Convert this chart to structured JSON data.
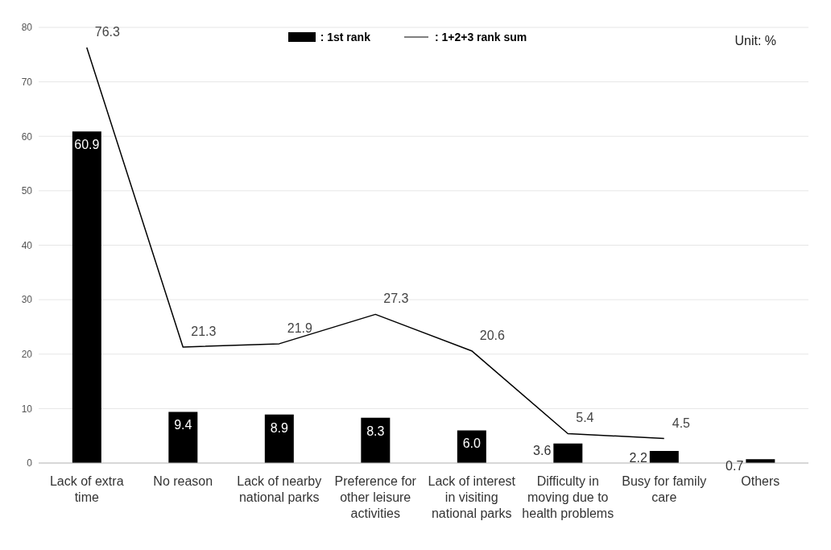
{
  "chart_data": {
    "type": "bar",
    "categories": [
      "Lack of extra time",
      "No reason",
      "Lack of nearby national parks",
      "Preference for other leisure activities",
      "Lack of interest in visiting national parks",
      "Difficulty in moving due to health problems",
      "Busy for family care",
      "Others"
    ],
    "series": [
      {
        "name": ": 1st rank",
        "color": "#000000",
        "values": [
          60.9,
          9.4,
          8.9,
          8.3,
          6.0,
          3.6,
          2.2,
          0.7
        ],
        "value_labels": [
          "60.9",
          "9.4",
          "8.9",
          "8.3",
          "6.0",
          "3.6",
          "2.2",
          "0.7"
        ]
      },
      {
        "name": ": 1+2+3 rank sum",
        "type": "line",
        "color": "#000000",
        "values": [
          76.3,
          21.3,
          21.9,
          27.3,
          20.6,
          5.4,
          4.5,
          null
        ]
      }
    ],
    "ylim": [
      0,
      80
    ],
    "yticks": [
      0,
      10,
      20,
      30,
      40,
      50,
      60,
      70,
      80
    ],
    "grid": "y",
    "legend": "top",
    "data_labels": true,
    "marker": "none",
    "annotations": [
      "Unit: %"
    ]
  }
}
